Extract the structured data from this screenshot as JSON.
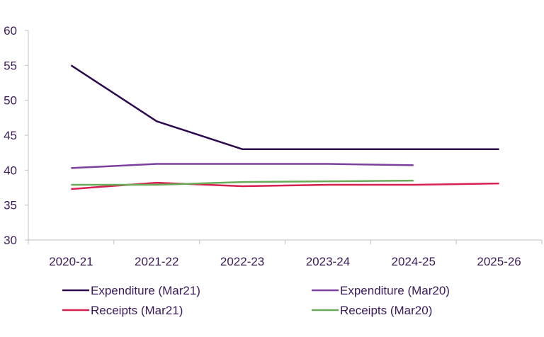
{
  "chart_data": {
    "type": "line",
    "title": "",
    "xlabel": "",
    "ylabel": "",
    "categories": [
      "2020-21",
      "2021-22",
      "2022-23",
      "2023-24",
      "2024-25",
      "2025-26"
    ],
    "ylim": [
      30,
      60
    ],
    "yticks": [
      30,
      35,
      40,
      45,
      50,
      55,
      60
    ],
    "grid": false,
    "legend": "bottom",
    "series": [
      {
        "name": "Expenditure (Mar21)",
        "color": "#2d0a4e",
        "values": [
          55,
          47,
          43,
          43,
          43,
          43
        ]
      },
      {
        "name": "Expenditure (Mar20)",
        "color": "#7b3f9e",
        "values": [
          40.3,
          40.9,
          40.9,
          40.9,
          40.7,
          null
        ]
      },
      {
        "name": "Receipts (Mar21)",
        "color": "#d6204f",
        "values": [
          37.3,
          38.2,
          37.7,
          37.9,
          37.9,
          38.1
        ]
      },
      {
        "name": "Receipts (Mar20)",
        "color": "#6aab5a",
        "values": [
          37.9,
          37.9,
          38.3,
          38.4,
          38.5,
          null
        ]
      }
    ]
  }
}
